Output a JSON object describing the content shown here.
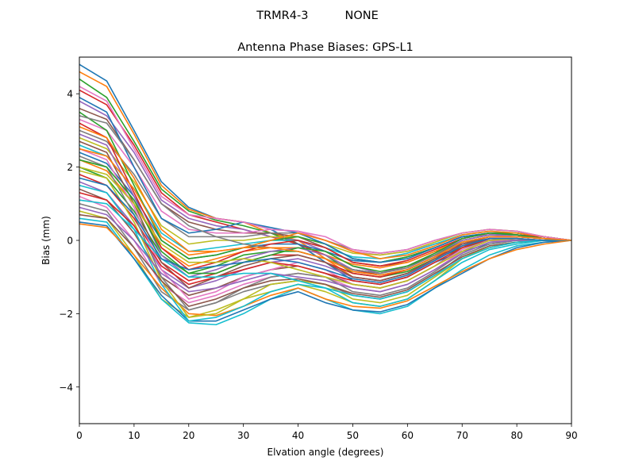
{
  "figure": {
    "suptitle": "TRMR4-3          NONE"
  },
  "chart_data": {
    "type": "line",
    "title": "Antenna Phase Biases: GPS-L1",
    "xlabel": "Elvation angle (degrees)",
    "ylabel": "Bias (mm)",
    "xlim": [
      0,
      90
    ],
    "ylim": [
      -5,
      5
    ],
    "xticks": [
      0,
      10,
      20,
      30,
      40,
      50,
      60,
      70,
      80,
      90
    ],
    "yticks": [
      -4,
      -2,
      0,
      2,
      4
    ],
    "ytick_labels": [
      "−4",
      "−2",
      "0",
      "2",
      "4"
    ],
    "grid": false,
    "legend": "none",
    "x": [
      0,
      5,
      10,
      15,
      20,
      25,
      30,
      35,
      40,
      45,
      50,
      55,
      60,
      65,
      70,
      75,
      80,
      85,
      90
    ],
    "colors": [
      "#1f77b4",
      "#ff7f0e",
      "#2ca02c",
      "#d62728",
      "#9467bd",
      "#8c564b",
      "#e377c2",
      "#7f7f7f",
      "#bcbd22",
      "#17becf"
    ],
    "series": [
      {
        "values": [
          4.8,
          4.35,
          3.0,
          1.6,
          0.9,
          0.6,
          0.5,
          0.3,
          -0.1,
          -0.6,
          -1.1,
          -1.2,
          -1.0,
          -0.6,
          -0.3,
          -0.1,
          0.0,
          0.0,
          0.0
        ]
      },
      {
        "values": [
          4.6,
          4.2,
          2.9,
          1.5,
          0.85,
          0.6,
          0.5,
          0.2,
          0.0,
          -0.5,
          -1.0,
          -1.1,
          -0.9,
          -0.5,
          -0.2,
          0.0,
          0.0,
          0.0,
          0.0
        ]
      },
      {
        "values": [
          4.4,
          3.9,
          2.7,
          1.4,
          0.8,
          0.55,
          0.4,
          0.2,
          -0.1,
          -0.4,
          -0.9,
          -1.0,
          -0.85,
          -0.5,
          -0.2,
          0.0,
          0.0,
          0.0,
          0.0
        ]
      },
      {
        "values": [
          4.1,
          3.7,
          2.6,
          1.3,
          0.7,
          0.5,
          0.3,
          0.1,
          -0.1,
          -0.4,
          -0.8,
          -0.95,
          -0.8,
          -0.45,
          -0.15,
          0.0,
          0.0,
          0.0,
          0.0
        ]
      },
      {
        "values": [
          3.8,
          3.4,
          2.4,
          1.1,
          0.6,
          0.4,
          0.3,
          0.1,
          0.0,
          -0.3,
          -0.7,
          -0.9,
          -0.7,
          -0.4,
          -0.1,
          0.0,
          0.0,
          0.0,
          0.0
        ]
      },
      {
        "values": [
          3.6,
          3.3,
          2.2,
          1.0,
          0.5,
          0.3,
          0.2,
          0.2,
          0.1,
          -0.2,
          -0.6,
          -0.7,
          -0.6,
          -0.3,
          -0.1,
          0.05,
          0.0,
          0.0,
          0.0
        ]
      },
      {
        "values": [
          3.3,
          3.0,
          2.0,
          0.8,
          0.3,
          0.2,
          0.2,
          0.3,
          0.25,
          0.0,
          -0.3,
          -0.4,
          -0.3,
          -0.1,
          0.1,
          0.15,
          0.1,
          0.05,
          0.0
        ]
      },
      {
        "values": [
          3.0,
          2.7,
          1.8,
          0.6,
          0.1,
          0.1,
          0.1,
          0.2,
          0.2,
          0.0,
          -0.25,
          -0.35,
          -0.25,
          0.0,
          0.2,
          0.3,
          0.25,
          0.1,
          0.0
        ]
      },
      {
        "values": [
          2.8,
          2.5,
          1.6,
          0.4,
          -0.1,
          0.0,
          0.0,
          0.1,
          0.1,
          -0.1,
          -0.35,
          -0.4,
          -0.3,
          -0.05,
          0.2,
          0.3,
          0.25,
          0.1,
          0.0
        ]
      },
      {
        "values": [
          2.6,
          2.3,
          1.4,
          0.2,
          -0.3,
          -0.2,
          -0.1,
          0.0,
          0.0,
          -0.2,
          -0.45,
          -0.5,
          -0.35,
          -0.1,
          0.15,
          0.25,
          0.2,
          0.1,
          0.0
        ]
      },
      {
        "values": [
          2.4,
          2.1,
          1.2,
          0.0,
          -0.5,
          -0.4,
          -0.2,
          -0.1,
          -0.1,
          -0.3,
          -0.55,
          -0.6,
          -0.45,
          -0.2,
          0.1,
          0.2,
          0.2,
          0.1,
          0.0
        ]
      },
      {
        "values": [
          2.2,
          1.9,
          1.0,
          -0.2,
          -0.7,
          -0.5,
          -0.3,
          -0.2,
          -0.2,
          -0.4,
          -0.65,
          -0.75,
          -0.6,
          -0.3,
          0.05,
          0.2,
          0.15,
          0.05,
          0.0
        ]
      },
      {
        "values": [
          2.0,
          1.7,
          0.8,
          -0.4,
          -0.9,
          -0.7,
          -0.4,
          -0.3,
          -0.3,
          -0.5,
          -0.8,
          -0.9,
          -0.7,
          -0.4,
          0.0,
          0.15,
          0.15,
          0.05,
          0.0
        ]
      },
      {
        "values": [
          1.8,
          1.5,
          0.6,
          -0.6,
          -1.1,
          -0.9,
          -0.6,
          -0.4,
          -0.4,
          -0.6,
          -0.9,
          -1.0,
          -0.8,
          -0.45,
          -0.05,
          0.1,
          0.1,
          0.05,
          0.0
        ]
      },
      {
        "values": [
          1.6,
          1.3,
          0.4,
          -0.8,
          -1.3,
          -1.1,
          -0.8,
          -0.6,
          -0.5,
          -0.7,
          -1.0,
          -1.1,
          -0.9,
          -0.55,
          -0.1,
          0.1,
          0.1,
          0.05,
          0.0
        ]
      },
      {
        "values": [
          1.4,
          1.1,
          0.2,
          -1.0,
          -1.5,
          -1.3,
          -1.0,
          -0.8,
          -0.7,
          -0.9,
          -1.2,
          -1.3,
          -1.1,
          -0.7,
          -0.2,
          0.05,
          0.05,
          0.0,
          0.0
        ]
      },
      {
        "values": [
          1.2,
          0.9,
          0.0,
          -1.2,
          -1.7,
          -1.5,
          -1.2,
          -1.0,
          -0.9,
          -1.0,
          -1.3,
          -1.4,
          -1.2,
          -0.8,
          -0.3,
          0.0,
          0.0,
          0.0,
          0.0
        ]
      },
      {
        "values": [
          1.0,
          0.8,
          -0.2,
          -1.4,
          -1.9,
          -1.7,
          -1.4,
          -1.2,
          -1.1,
          -1.2,
          -1.5,
          -1.6,
          -1.4,
          -0.95,
          -0.4,
          -0.1,
          0.0,
          0.0,
          0.0
        ]
      },
      {
        "values": [
          0.8,
          0.6,
          -0.4,
          -1.6,
          -2.1,
          -1.9,
          -1.6,
          -1.4,
          -1.2,
          -1.4,
          -1.7,
          -1.8,
          -1.6,
          -1.1,
          -0.5,
          -0.15,
          -0.05,
          0.0,
          0.0
        ]
      },
      {
        "values": [
          0.6,
          0.5,
          -0.5,
          -1.6,
          -2.25,
          -2.3,
          -2.0,
          -1.6,
          -1.3,
          -1.6,
          -1.9,
          -2.0,
          -1.8,
          -1.3,
          -0.8,
          -0.4,
          -0.15,
          -0.05,
          0.0
        ]
      },
      {
        "values": [
          0.5,
          0.4,
          -0.5,
          -1.5,
          -2.2,
          -2.2,
          -1.9,
          -1.6,
          -1.4,
          -1.7,
          -1.9,
          -1.95,
          -1.75,
          -1.3,
          -0.9,
          -0.5,
          -0.2,
          -0.05,
          0.0
        ]
      },
      {
        "values": [
          0.45,
          0.35,
          -0.4,
          -1.3,
          -2.0,
          -2.05,
          -1.8,
          -1.5,
          -1.3,
          -1.6,
          -1.8,
          -1.85,
          -1.65,
          -1.25,
          -0.85,
          -0.5,
          -0.25,
          -0.1,
          0.0
        ]
      },
      {
        "values": [
          3.5,
          3.0,
          1.5,
          0.0,
          -0.5,
          -0.4,
          -0.2,
          0.0,
          0.1,
          -0.1,
          -0.5,
          -0.6,
          -0.45,
          -0.2,
          0.1,
          0.2,
          0.2,
          0.1,
          0.0
        ]
      },
      {
        "values": [
          3.2,
          2.8,
          1.3,
          -0.2,
          -0.8,
          -0.6,
          -0.3,
          -0.1,
          0.0,
          -0.2,
          -0.6,
          -0.7,
          -0.55,
          -0.25,
          0.05,
          0.2,
          0.15,
          0.1,
          0.0
        ]
      },
      {
        "values": [
          2.9,
          2.6,
          1.2,
          -0.4,
          -1.0,
          -0.8,
          -0.5,
          -0.3,
          -0.2,
          -0.4,
          -0.8,
          -0.9,
          -0.7,
          -0.35,
          0.0,
          0.15,
          0.15,
          0.05,
          0.0
        ]
      },
      {
        "values": [
          2.7,
          2.4,
          1.0,
          -0.6,
          -1.3,
          -1.0,
          -0.7,
          -0.5,
          -0.4,
          -0.6,
          -1.0,
          -1.1,
          -0.9,
          -0.5,
          -0.1,
          0.1,
          0.1,
          0.05,
          0.0
        ]
      },
      {
        "values": [
          2.5,
          2.2,
          0.9,
          -0.8,
          -1.6,
          -1.4,
          -1.0,
          -0.8,
          -0.6,
          -0.8,
          -1.2,
          -1.3,
          -1.1,
          -0.7,
          -0.25,
          0.0,
          0.05,
          0.0,
          0.0
        ]
      },
      {
        "values": [
          2.3,
          2.0,
          0.7,
          -1.0,
          -1.9,
          -1.7,
          -1.3,
          -1.0,
          -0.9,
          -1.0,
          -1.4,
          -1.5,
          -1.3,
          -0.85,
          -0.35,
          -0.05,
          0.0,
          0.0,
          0.0
        ]
      },
      {
        "values": [
          1.9,
          1.7,
          0.5,
          -1.1,
          -2.1,
          -2.0,
          -1.6,
          -1.2,
          -1.1,
          -1.2,
          -1.6,
          -1.7,
          -1.5,
          -1.0,
          -0.5,
          -0.2,
          -0.05,
          0.0,
          0.0
        ]
      },
      {
        "values": [
          1.5,
          1.3,
          0.3,
          -1.2,
          -2.2,
          -2.1,
          -1.8,
          -1.4,
          -1.2,
          -1.3,
          -1.7,
          -1.8,
          -1.6,
          -1.1,
          -0.6,
          -0.25,
          -0.1,
          0.0,
          0.0
        ]
      },
      {
        "values": [
          3.9,
          3.5,
          2.0,
          0.6,
          0.2,
          0.3,
          0.5,
          0.35,
          0.2,
          -0.1,
          -0.5,
          -0.6,
          -0.5,
          -0.2,
          0.1,
          0.2,
          0.15,
          0.05,
          0.0
        ]
      },
      {
        "values": [
          3.1,
          2.8,
          1.7,
          0.3,
          -0.3,
          -0.3,
          -0.2,
          0.0,
          0.2,
          0.0,
          -0.3,
          -0.5,
          -0.4,
          -0.15,
          0.15,
          0.25,
          0.2,
          0.1,
          0.0
        ]
      },
      {
        "values": [
          2.2,
          2.0,
          1.1,
          -0.3,
          -0.9,
          -0.9,
          -0.6,
          -0.4,
          -0.2,
          -0.3,
          -0.7,
          -0.85,
          -0.7,
          -0.35,
          0.05,
          0.2,
          0.15,
          0.05,
          0.0
        ]
      },
      {
        "values": [
          1.3,
          1.1,
          0.4,
          -0.7,
          -1.2,
          -1.0,
          -0.8,
          -0.6,
          -0.7,
          -0.9,
          -1.1,
          -1.2,
          -1.0,
          -0.6,
          -0.2,
          0.05,
          0.05,
          0.0,
          0.0
        ]
      },
      {
        "values": [
          0.9,
          0.7,
          0.0,
          -0.9,
          -1.4,
          -1.3,
          -1.1,
          -0.9,
          -1.0,
          -1.1,
          -1.3,
          -1.4,
          -1.2,
          -0.8,
          -0.35,
          -0.05,
          0.0,
          0.0,
          0.0
        ]
      },
      {
        "values": [
          0.7,
          0.6,
          -0.2,
          -1.1,
          -1.8,
          -1.6,
          -1.3,
          -1.1,
          -1.05,
          -1.2,
          -1.45,
          -1.55,
          -1.35,
          -0.9,
          -0.45,
          -0.15,
          -0.05,
          0.0,
          0.0
        ]
      },
      {
        "values": [
          4.2,
          3.8,
          2.5,
          1.2,
          0.7,
          0.6,
          0.5,
          0.3,
          0.25,
          0.1,
          -0.25,
          -0.35,
          -0.25,
          0.0,
          0.2,
          0.3,
          0.25,
          0.1,
          0.0
        ]
      },
      {
        "values": [
          3.4,
          3.2,
          2.2,
          1.0,
          0.4,
          0.1,
          -0.1,
          -0.2,
          -0.3,
          -0.5,
          -0.8,
          -0.9,
          -0.75,
          -0.4,
          -0.05,
          0.1,
          0.1,
          0.05,
          0.0
        ]
      },
      {
        "values": [
          2.0,
          1.8,
          1.0,
          -0.1,
          -0.6,
          -0.6,
          -0.5,
          -0.6,
          -0.8,
          -1.0,
          -1.2,
          -1.3,
          -1.1,
          -0.7,
          -0.3,
          0.0,
          0.05,
          0.0,
          0.0
        ]
      },
      {
        "values": [
          1.1,
          1.0,
          0.3,
          -0.5,
          -1.0,
          -1.0,
          -0.9,
          -0.9,
          -1.1,
          -1.3,
          -1.5,
          -1.6,
          -1.4,
          -0.95,
          -0.5,
          -0.2,
          -0.05,
          0.0,
          0.0
        ]
      },
      {
        "values": [
          1.7,
          1.5,
          0.7,
          -0.5,
          -0.8,
          -0.7,
          -0.6,
          -0.5,
          -0.6,
          -0.8,
          -1.05,
          -1.15,
          -0.95,
          -0.55,
          -0.15,
          0.05,
          0.05,
          0.0,
          0.0
        ]
      },
      {
        "values": [
          2.5,
          2.3,
          1.4,
          0.1,
          -0.4,
          -0.3,
          -0.2,
          -0.2,
          -0.3,
          -0.5,
          -0.85,
          -0.95,
          -0.8,
          -0.45,
          -0.05,
          0.1,
          0.1,
          0.05,
          0.0
        ]
      }
    ]
  }
}
